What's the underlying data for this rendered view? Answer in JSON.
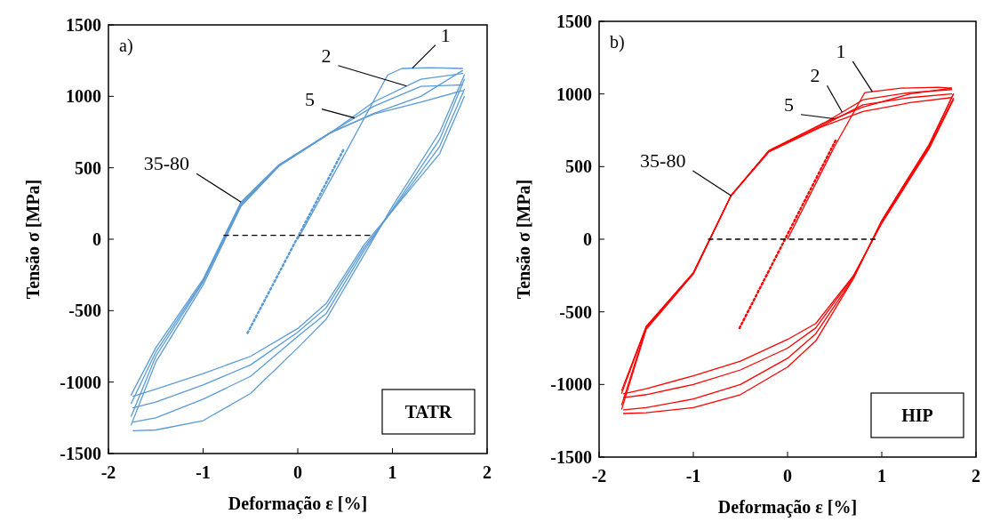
{
  "chart_data": [
    {
      "type": "line",
      "xlabel": "Deformação ε [%]",
      "ylabel": "Tensão σ [MPa]",
      "xlim": [
        -2,
        2
      ],
      "ylim": [
        -1500,
        1500
      ],
      "xticks": [
        -2,
        -1,
        0,
        1,
        2
      ],
      "yticks": [
        -1500,
        -1000,
        -500,
        0,
        500,
        1000,
        1500
      ],
      "grid": false,
      "marker": "none",
      "annotations": [
        "a)",
        "TATR",
        {
          "text": "1",
          "x": 1.21,
          "y": 1197
        },
        {
          "text": "2",
          "x": 1.15,
          "y": 1072
        },
        {
          "text": "5",
          "x": 0.6,
          "y": 849
        },
        {
          "text": "35-80",
          "x": -0.6,
          "y": 260
        }
      ],
      "series": [
        {
          "color": "#5b9bd5",
          "x": [
            0,
            0.5,
            0.95,
            1.1,
            1.4,
            1.74
          ],
          "values": [
            0,
            600,
            1150,
            1195,
            1200,
            1195
          ]
        },
        {
          "color": "#5b9bd5",
          "x": [
            -1.74,
            -1.5,
            -1.0,
            -0.5,
            0,
            0.3,
            0.7,
            1.0,
            1.5,
            1.76
          ],
          "values": [
            -1340,
            -1335,
            -1270,
            -1080,
            -760,
            -560,
            -110,
            230,
            750,
            1150
          ]
        },
        {
          "color": "#5b9bd5",
          "x": [
            -1.76,
            -1.5,
            -1.0,
            -0.6,
            -0.2,
            0.35,
            0.8,
            1.3,
            1.74
          ],
          "values": [
            -1300,
            -860,
            -320,
            230,
            510,
            745,
            880,
            1000,
            1180
          ]
        },
        {
          "color": "#5b9bd5",
          "x": [
            -1.74,
            -1.5,
            -1.0,
            -0.5,
            0,
            0.3,
            0.7,
            1.0,
            1.5,
            1.76
          ],
          "values": [
            -1280,
            -1250,
            -1120,
            -960,
            -680,
            -520,
            -80,
            210,
            700,
            1120
          ]
        },
        {
          "color": "#5b9bd5",
          "x": [
            -1.76,
            -1.5,
            -1.0,
            -0.6,
            -0.2,
            0.35,
            0.8,
            1.3,
            1.74
          ],
          "values": [
            -1240,
            -820,
            -300,
            240,
            515,
            745,
            960,
            1120,
            1160
          ]
        },
        {
          "color": "#5b9bd5",
          "x": [
            -1.74,
            -1.5,
            -1.0,
            -0.5,
            0,
            0.3,
            0.7,
            1.0,
            1.5,
            1.76
          ],
          "values": [
            -1180,
            -1140,
            -1020,
            -880,
            -650,
            -480,
            -60,
            200,
            650,
            1050
          ]
        },
        {
          "color": "#5b9bd5",
          "x": [
            -1.76,
            -1.5,
            -1.0,
            -0.6,
            -0.2,
            0.35,
            0.8,
            1.0,
            1.3,
            1.74
          ],
          "values": [
            -1150,
            -790,
            -290,
            250,
            520,
            748,
            930,
            986,
            1070,
            1080
          ]
        },
        {
          "color": "#5b9bd5",
          "x": [
            -1.74,
            -1.5,
            -1.0,
            -0.5,
            0,
            0.3,
            0.7,
            1.0,
            1.5,
            1.76
          ],
          "values": [
            -1100,
            -1050,
            -940,
            -820,
            -625,
            -450,
            -40,
            200,
            600,
            1000
          ]
        },
        {
          "color": "#5b9bd5",
          "x": [
            -1.76,
            -1.5,
            -1.0,
            -0.6,
            -0.2,
            0.35,
            0.8,
            1.3,
            1.74
          ],
          "values": [
            -1090,
            -760,
            -280,
            260,
            520,
            750,
            875,
            960,
            1040
          ]
        },
        {
          "color": "#5b9bd5",
          "line_style": "dotted",
          "x": [
            -0.53,
            0.49
          ],
          "values": [
            -656,
            635
          ]
        },
        {
          "color": "#000000",
          "line_style": "dashed",
          "x": [
            -0.78,
            0.76
          ],
          "values": [
            27,
            27
          ]
        }
      ]
    },
    {
      "type": "line",
      "xlabel": "Deformação ε [%]",
      "ylabel": "Tensão σ [MPa]",
      "xlim": [
        -2,
        2
      ],
      "ylim": [
        -1500,
        1500
      ],
      "xticks": [
        -2,
        -1,
        0,
        1,
        2
      ],
      "yticks": [
        -1500,
        -1000,
        -500,
        0,
        500,
        1000,
        1500
      ],
      "grid": false,
      "marker": "none",
      "annotations": [
        "b)",
        "HIP",
        {
          "text": "1",
          "x": 0.9,
          "y": 1016
        },
        {
          "text": "2",
          "x": 0.58,
          "y": 874
        },
        {
          "text": "5",
          "x": 0.51,
          "y": 828
        },
        {
          "text": "35-80",
          "x": -0.6,
          "y": 300
        }
      ],
      "series": [
        {
          "color": "#ff0000",
          "x": [
            0,
            0.5,
            0.82,
            1.2,
            1.6,
            1.74
          ],
          "values": [
            0,
            640,
            1010,
            1040,
            1046,
            1040
          ]
        },
        {
          "color": "#ff0000",
          "x": [
            -1.74,
            -1.5,
            -1.0,
            -0.5,
            0,
            0.3,
            0.7,
            1.0,
            1.5,
            1.76
          ],
          "values": [
            -1200,
            -1195,
            -1160,
            -1070,
            -880,
            -700,
            -270,
            130,
            650,
            1000
          ]
        },
        {
          "color": "#ff0000",
          "x": [
            -1.76,
            -1.5,
            -1.0,
            -0.6,
            -0.2,
            0.35,
            0.8,
            1.3,
            1.74
          ],
          "values": [
            -1170,
            -620,
            -240,
            300,
            610,
            790,
            910,
            1000,
            1040
          ]
        },
        {
          "color": "#ff0000",
          "x": [
            -1.74,
            -1.5,
            -1.0,
            -0.5,
            0,
            0.3,
            0.7,
            1.0,
            1.5,
            1.76
          ],
          "values": [
            -1175,
            -1160,
            -1100,
            -1000,
            -820,
            -650,
            -265,
            125,
            640,
            1000
          ]
        },
        {
          "color": "#ff0000",
          "x": [
            -1.76,
            -1.5,
            -1.0,
            -0.6,
            -0.2,
            0.35,
            0.8,
            1.3,
            1.74
          ],
          "values": [
            -1140,
            -610,
            -235,
            300,
            605,
            785,
            960,
            1010,
            1030
          ]
        },
        {
          "color": "#ff0000",
          "x": [
            -1.74,
            -1.5,
            -1.0,
            -0.5,
            0,
            0.3,
            0.7,
            1.0,
            1.5,
            1.76
          ],
          "values": [
            -1090,
            -1070,
            -1000,
            -900,
            -750,
            -610,
            -255,
            115,
            630,
            970
          ]
        },
        {
          "color": "#ff0000",
          "x": [
            -1.76,
            -1.5,
            -1.0,
            -0.6,
            -0.2,
            0.35,
            0.8,
            1.3,
            1.74
          ],
          "values": [
            -1060,
            -605,
            -232,
            300,
            603,
            775,
            925,
            975,
            1000
          ]
        },
        {
          "color": "#ff0000",
          "x": [
            -1.74,
            -1.5,
            -1.0,
            -0.5,
            0,
            0.3,
            0.7,
            1.0,
            1.5,
            1.76
          ],
          "values": [
            -1065,
            -1030,
            -940,
            -840,
            -690,
            -580,
            -250,
            110,
            620,
            960
          ]
        },
        {
          "color": "#ff0000",
          "x": [
            -1.76,
            -1.5,
            -1.0,
            -0.6,
            -0.2,
            0.35,
            0.8,
            1.3,
            1.74
          ],
          "values": [
            -1040,
            -600,
            -230,
            300,
            600,
            770,
            880,
            940,
            975
          ]
        },
        {
          "color": "#ff0000",
          "line_style": "dotted",
          "x": [
            -0.51,
            0.51
          ],
          "values": [
            -612,
            680
          ]
        },
        {
          "color": "#000000",
          "line_style": "dashed",
          "x": [
            -0.84,
            0.93
          ],
          "values": [
            0,
            0
          ]
        }
      ]
    }
  ]
}
